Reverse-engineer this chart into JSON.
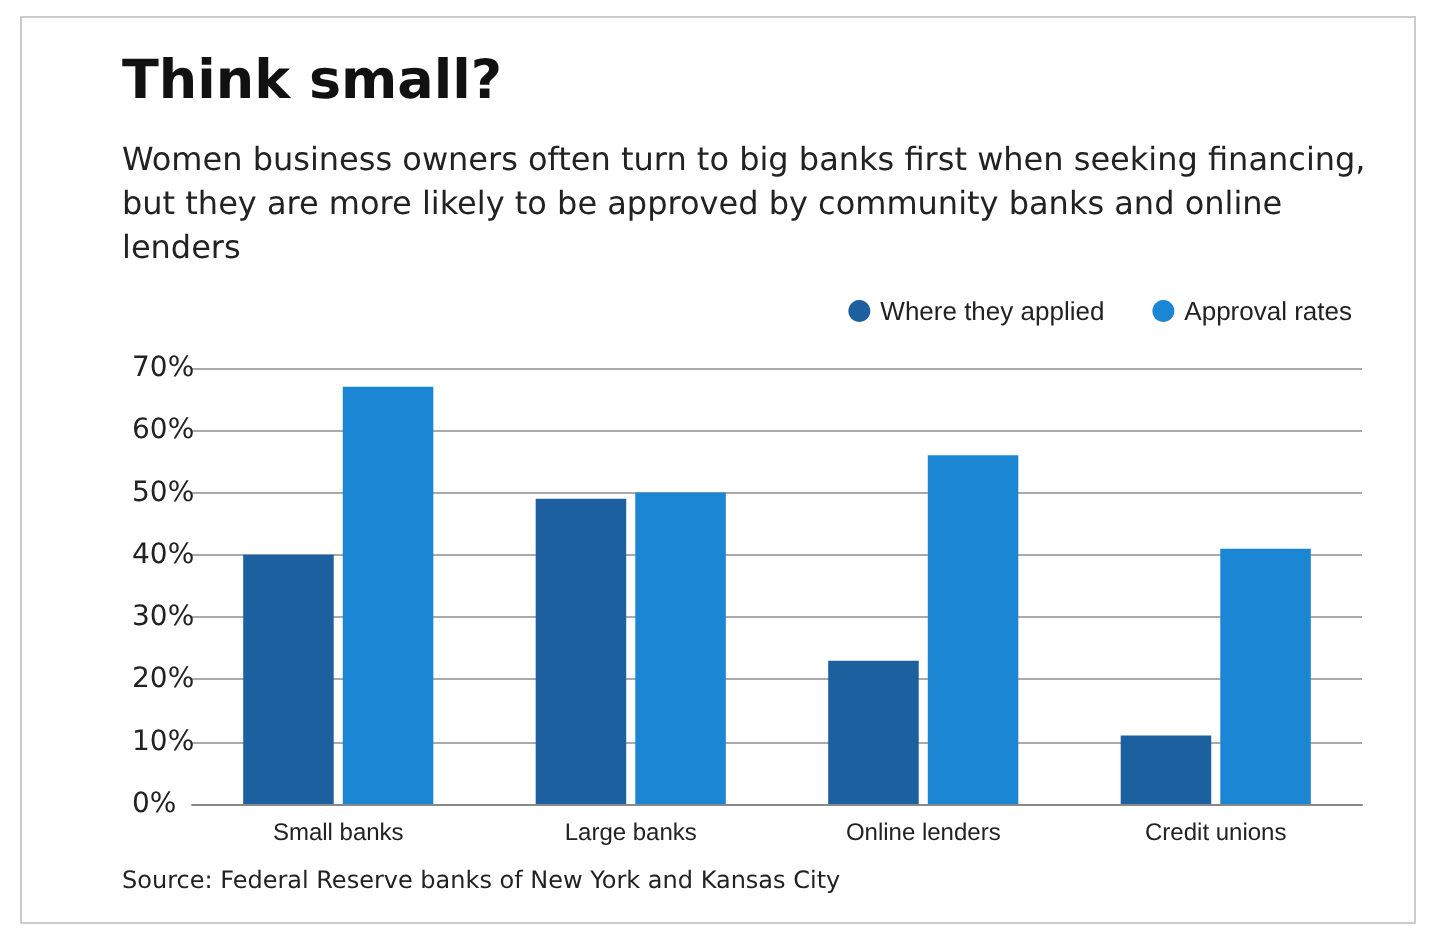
{
  "chart_data": {
    "type": "bar",
    "title": "Think small?",
    "subtitle": "Women business owners often turn to big banks first when seeking financing, but they are more likely to be approved by community banks and online lenders",
    "categories": [
      "Small banks",
      "Large banks",
      "Online lenders",
      "Credit unions"
    ],
    "series": [
      {
        "name": "Where they applied",
        "color": "#1c609f",
        "values": [
          40,
          49,
          23,
          11
        ]
      },
      {
        "name": "Approval rates",
        "color": "#1a86d4",
        "values": [
          67,
          50,
          56,
          41
        ]
      }
    ],
    "ylim": [
      0,
      70
    ],
    "yticks": [
      {
        "value": 0,
        "label": "0%"
      },
      {
        "value": 10,
        "label": "10%"
      },
      {
        "value": 20,
        "label": "20%"
      },
      {
        "value": 30,
        "label": "30%"
      },
      {
        "value": 40,
        "label": "40%"
      },
      {
        "value": 50,
        "label": "50%"
      },
      {
        "value": 60,
        "label": "60%"
      },
      {
        "value": 70,
        "label": "70%"
      }
    ],
    "grid": "y",
    "legend": "top right",
    "annotations": [
      "Source: Federal Reserve banks of New York and Kansas City"
    ]
  }
}
